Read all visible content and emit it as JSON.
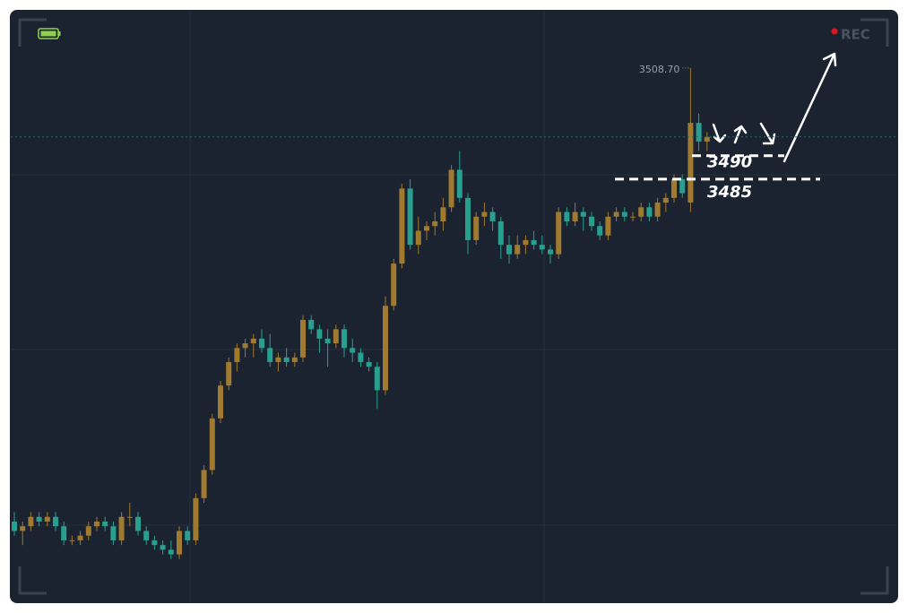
{
  "chart_data": {
    "type": "candlestick",
    "up_color": "#a07a2e",
    "down_color": "#27a08f",
    "ylim": [
      3394.8,
      3520.9
    ],
    "ohlc": [
      [
        3412,
        3414,
        3409,
        3410
      ],
      [
        3410,
        3412,
        3407,
        3411
      ],
      [
        3411,
        3414,
        3410,
        3413
      ],
      [
        3413,
        3414,
        3411,
        3412
      ],
      [
        3412,
        3414,
        3411,
        3413
      ],
      [
        3413,
        3414,
        3410,
        3411
      ],
      [
        3411,
        3412,
        3407,
        3408
      ],
      [
        3408,
        3409,
        3407,
        3408
      ],
      [
        3408,
        3410,
        3407,
        3409
      ],
      [
        3409,
        3412,
        3408,
        3411
      ],
      [
        3411,
        3413,
        3410,
        3412
      ],
      [
        3412,
        3413,
        3410,
        3411
      ],
      [
        3411,
        3412,
        3407,
        3408
      ],
      [
        3408,
        3414,
        3407,
        3413
      ],
      [
        3413,
        3416,
        3411,
        3413
      ],
      [
        3413,
        3414,
        3409,
        3410
      ],
      [
        3410,
        3411,
        3407,
        3408
      ],
      [
        3408,
        3409,
        3406,
        3407
      ],
      [
        3407,
        3408,
        3405,
        3406
      ],
      [
        3406,
        3408,
        3404,
        3405
      ],
      [
        3405,
        3411,
        3404,
        3410
      ],
      [
        3410,
        3411,
        3407,
        3408
      ],
      [
        3408,
        3418,
        3407,
        3417
      ],
      [
        3417,
        3424,
        3416,
        3423
      ],
      [
        3423,
        3435,
        3422,
        3434
      ],
      [
        3434,
        3442,
        3433,
        3441
      ],
      [
        3441,
        3447,
        3440,
        3446
      ],
      [
        3446,
        3450,
        3444,
        3449
      ],
      [
        3449,
        3451,
        3447,
        3450
      ],
      [
        3450,
        3452,
        3447,
        3451
      ],
      [
        3451,
        3453,
        3448,
        3449
      ],
      [
        3449,
        3452,
        3445,
        3446
      ],
      [
        3446,
        3448,
        3444,
        3447
      ],
      [
        3447,
        3449,
        3445,
        3446
      ],
      [
        3446,
        3448,
        3445,
        3447
      ],
      [
        3447,
        3456,
        3446,
        3455
      ],
      [
        3455,
        3456,
        3452,
        3453
      ],
      [
        3453,
        3454,
        3448,
        3451
      ],
      [
        3451,
        3453,
        3445,
        3450
      ],
      [
        3450,
        3454,
        3449,
        3453
      ],
      [
        3453,
        3454,
        3447,
        3449
      ],
      [
        3449,
        3451,
        3446,
        3448
      ],
      [
        3448,
        3449,
        3445,
        3446
      ],
      [
        3446,
        3447,
        3444,
        3445
      ],
      [
        3445,
        3446,
        3436,
        3440
      ],
      [
        3440,
        3460,
        3439,
        3458
      ],
      [
        3458,
        3468,
        3457,
        3467
      ],
      [
        3467,
        3484,
        3466,
        3483
      ],
      [
        3483,
        3485,
        3470,
        3471
      ],
      [
        3471,
        3477,
        3469,
        3474
      ],
      [
        3474,
        3476,
        3472,
        3475
      ],
      [
        3475,
        3478,
        3473,
        3476
      ],
      [
        3476,
        3481,
        3474,
        3479
      ],
      [
        3479,
        3488,
        3478,
        3487
      ],
      [
        3487,
        3491,
        3480,
        3481
      ],
      [
        3481,
        3482,
        3469,
        3472
      ],
      [
        3472,
        3478,
        3471,
        3477
      ],
      [
        3477,
        3480,
        3475,
        3478
      ],
      [
        3478,
        3479,
        3474,
        3476
      ],
      [
        3476,
        3477,
        3468,
        3471
      ],
      [
        3471,
        3473,
        3467,
        3469
      ],
      [
        3469,
        3473,
        3468,
        3471
      ],
      [
        3471,
        3473,
        3469,
        3472
      ],
      [
        3472,
        3474,
        3470,
        3471
      ],
      [
        3471,
        3473,
        3469,
        3470
      ],
      [
        3470,
        3471,
        3467,
        3469
      ],
      [
        3469,
        3479,
        3468,
        3478
      ],
      [
        3478,
        3479,
        3475,
        3476
      ],
      [
        3476,
        3480,
        3475,
        3478
      ],
      [
        3478,
        3479,
        3474,
        3477
      ],
      [
        3477,
        3478,
        3474,
        3475
      ],
      [
        3475,
        3476,
        3472,
        3473
      ],
      [
        3473,
        3478,
        3472,
        3477
      ],
      [
        3477,
        3479,
        3476,
        3478
      ],
      [
        3478,
        3479,
        3476,
        3477
      ],
      [
        3477,
        3478,
        3476,
        3477
      ],
      [
        3477,
        3480,
        3476,
        3479
      ],
      [
        3479,
        3480,
        3476,
        3477
      ],
      [
        3477,
        3481,
        3476,
        3480
      ],
      [
        3480,
        3482,
        3478,
        3481
      ],
      [
        3481,
        3486,
        3480,
        3485
      ],
      [
        3485,
        3486,
        3481,
        3482
      ],
      [
        3480,
        3508.7,
        3478,
        3497
      ],
      [
        3497,
        3499,
        3491,
        3493
      ],
      [
        3493,
        3495,
        3491,
        3494
      ]
    ],
    "high_label": {
      "value": 3508.7,
      "label": "3508.70"
    },
    "levels": [
      {
        "value": 3490,
        "label": "3490"
      },
      {
        "value": 3485,
        "label": "3485"
      }
    ]
  },
  "overlay": {
    "rec_label": "REC"
  }
}
